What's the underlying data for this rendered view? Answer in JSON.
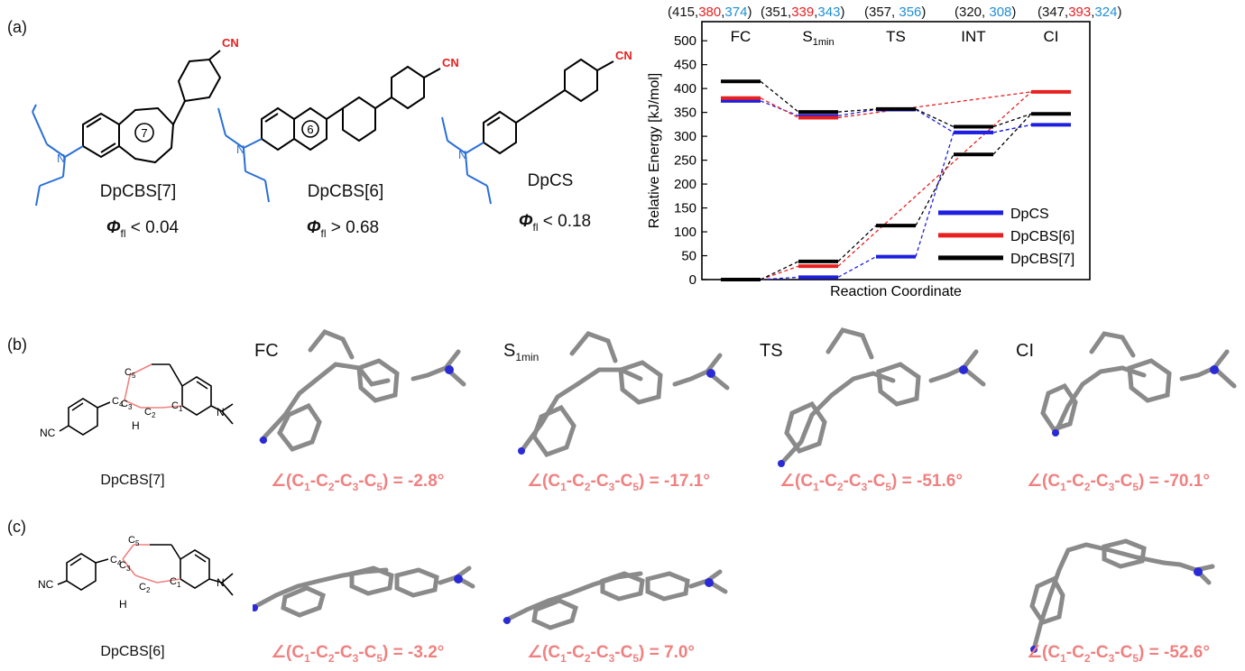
{
  "panels": {
    "a": "(a)",
    "b": "(b)",
    "c": "(c)"
  },
  "molecules_a": [
    {
      "name": "DpCBS[7]",
      "ring": "7",
      "phi_symbol": "Φ",
      "phi_sub": "fl",
      "phi_rest": " < 0.04",
      "cn": "CN"
    },
    {
      "name": "DpCBS[6]",
      "ring": "6",
      "phi_symbol": "Φ",
      "phi_sub": "fl",
      "phi_rest": " > 0.68",
      "cn": "CN"
    },
    {
      "name": "DpCS",
      "phi_symbol": "Φ",
      "phi_sub": "fl",
      "phi_rest": " < 0.18",
      "cn": "CN"
    }
  ],
  "energy_values_top": [
    {
      "black": "(415,",
      "red": "380",
      "sep": ",",
      "blue": "374",
      "end": ")"
    },
    {
      "black": "(351,",
      "red": "339",
      "sep": ",",
      "blue": "343",
      "end": ")"
    },
    {
      "black": "(357, ",
      "blue": "356",
      "end": ")"
    },
    {
      "black": "(320, ",
      "blue": "308",
      "end": ")"
    },
    {
      "black": "(347,",
      "red": "393",
      "sep": ",",
      "blue": "324",
      "end": ")"
    }
  ],
  "chart_data": {
    "type": "line",
    "title": "",
    "xlabel": "Reaction Coordinate",
    "ylabel": "Relative Energy [kJ/mol]",
    "ylim": [
      0,
      540
    ],
    "yticks": [
      0,
      50,
      100,
      150,
      200,
      250,
      300,
      350,
      400,
      450,
      500
    ],
    "categories": [
      {
        "text": "FC",
        "sub": ""
      },
      {
        "text": "S",
        "sub": "1min"
      },
      {
        "text": "TS",
        "sub": ""
      },
      {
        "text": "INT",
        "sub": ""
      },
      {
        "text": "CI",
        "sub": ""
      }
    ],
    "legend_position": "right-middle",
    "series": [
      {
        "name": "DpCS",
        "color": "#1f1fe0",
        "upper": [
          374,
          343,
          356,
          308,
          324
        ],
        "lower": [
          0,
          5,
          48,
          308,
          null
        ]
      },
      {
        "name": "DpCBS[6]",
        "color": "#e82020",
        "upper": [
          380,
          339,
          null,
          null,
          393
        ],
        "lower": [
          0,
          28,
          null,
          null,
          null
        ]
      },
      {
        "name": "DpCBS[7]",
        "color": "#000000",
        "upper": [
          415,
          351,
          357,
          320,
          347
        ],
        "lower": [
          0,
          38,
          113,
          262,
          null
        ]
      }
    ]
  },
  "panel_b": {
    "scheme_name": "DpCBS[7]",
    "atoms": {
      "c1": "C",
      "c2": "C",
      "c3": "C",
      "c4": "C",
      "c5": "C",
      "h": "H",
      "n": "N",
      "cn": "NC"
    },
    "states": [
      {
        "label": "FC",
        "sub": ""
      },
      {
        "label": "S",
        "sub": "1min"
      },
      {
        "label": "TS",
        "sub": ""
      },
      {
        "label": "CI",
        "sub": ""
      }
    ],
    "angles": [
      "= -2.8°",
      "= -17.1°",
      "= -51.6°",
      "= -70.1°"
    ]
  },
  "panel_c": {
    "scheme_name": "DpCBS[6]",
    "angles": [
      "= -3.2°",
      "= 7.0°",
      "= -52.6°"
    ]
  },
  "angle_prefix": "∠(C",
  "angle_subs": [
    "1",
    "2",
    "3",
    "5"
  ]
}
